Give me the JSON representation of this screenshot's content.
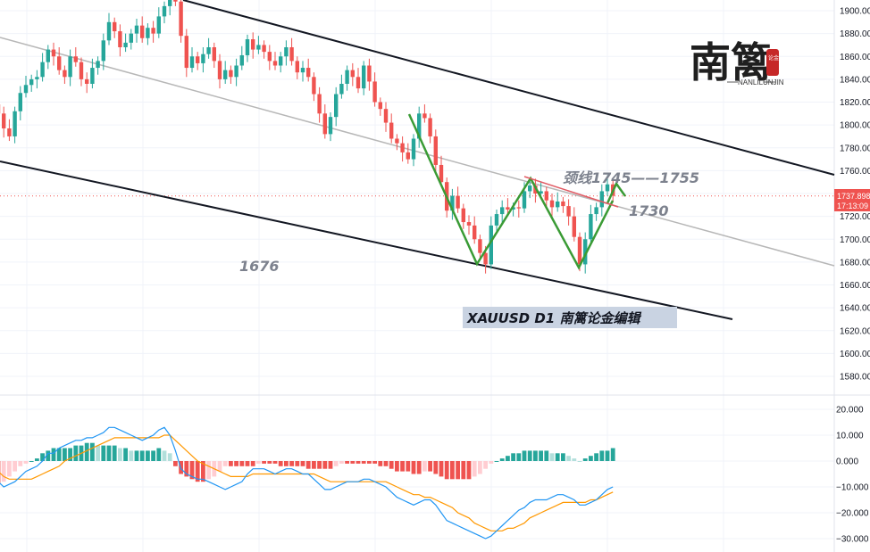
{
  "colors": {
    "up": "#26a69a",
    "down": "#ef5350",
    "hist_up_strong": "#26a69a",
    "hist_up_weak": "#b2dfdb",
    "hist_down_strong": "#ef5350",
    "hist_down_weak": "#ffcdd2",
    "macd_line": "#2196f3",
    "signal_line": "#ff9800",
    "pattern": "#3a9b35",
    "channel": "#131722",
    "mid_channel": "#b7b7b7",
    "neckline": "#e15b64",
    "price_tag": "#ef5350"
  },
  "logo": {
    "text": "南篱",
    "sub": "NANLILUNJIN",
    "seal_text": "论金"
  },
  "annotations": {
    "neckline": "颈线1745——1755",
    "level_1730": "1730",
    "level_1676": "1676",
    "tag": "XAUUSD  D1   南篱论金编辑"
  },
  "price_tag": {
    "price": "1737.898",
    "countdown": "17:13:09"
  },
  "chart_data": [
    {
      "type": "candlestick",
      "symbol": "XAUUSD",
      "timeframe": "D1",
      "ylim": [
        1565,
        1910
      ],
      "yticks": [
        "1580.000",
        "1600.000",
        "1620.000",
        "1640.000",
        "1660.000",
        "1680.000",
        "1700.000",
        "1720.000",
        "1740.000",
        "1760.000",
        "1780.000",
        "1800.000",
        "1820.000",
        "1840.000",
        "1860.000",
        "1880.000",
        "1900.000"
      ],
      "grid": true,
      "close": [
        1810,
        1797,
        1790,
        1812,
        1828,
        1835,
        1840,
        1842,
        1855,
        1866,
        1860,
        1848,
        1842,
        1860,
        1855,
        1840,
        1836,
        1850,
        1856,
        1874,
        1890,
        1882,
        1868,
        1872,
        1880,
        1887,
        1876,
        1885,
        1880,
        1895,
        1904,
        1910,
        1908,
        1878,
        1850,
        1860,
        1854,
        1862,
        1868,
        1856,
        1840,
        1848,
        1842,
        1852,
        1861,
        1875,
        1866,
        1870,
        1864,
        1856,
        1852,
        1860,
        1868,
        1856,
        1846,
        1850,
        1842,
        1827,
        1810,
        1792,
        1807,
        1827,
        1836,
        1848,
        1842,
        1832,
        1852,
        1838,
        1820,
        1814,
        1802,
        1788,
        1784,
        1776,
        1770,
        1788,
        1810,
        1806,
        1790,
        1765,
        1750,
        1725,
        1738,
        1727,
        1715,
        1712,
        1700,
        1688,
        1678,
        1712,
        1722,
        1728,
        1726,
        1728,
        1727,
        1742,
        1747,
        1740,
        1742,
        1734,
        1728,
        1733,
        1729,
        1720,
        1702,
        1678,
        1700,
        1722,
        1728,
        1742,
        1748,
        1738
      ],
      "macd": [
        -8,
        -10,
        -9,
        -8,
        -6,
        -4,
        -3,
        -2,
        0,
        3,
        3,
        5,
        6,
        7,
        8,
        8,
        9,
        9,
        10,
        11,
        13,
        13,
        12,
        11,
        10,
        9,
        8,
        9,
        10,
        12,
        13,
        10,
        4,
        -3,
        -5,
        -6,
        -7,
        -7,
        -8,
        -9,
        -10,
        -11,
        -10,
        -9,
        -8,
        -5,
        -3,
        -3,
        -3,
        -4,
        -5,
        -4,
        -3,
        -3,
        -4,
        -5,
        -5,
        -7,
        -9,
        -11,
        -11,
        -10,
        -9,
        -8,
        -8,
        -8,
        -7,
        -7,
        -8,
        -9,
        -10,
        -12,
        -14,
        -15,
        -16,
        -17,
        -16,
        -15,
        -15,
        -17,
        -20,
        -23,
        -24,
        -25,
        -26,
        -27,
        -28,
        -29,
        -30,
        -29,
        -27,
        -25,
        -23,
        -21,
        -19,
        -18,
        -16,
        -15,
        -15,
        -15,
        -14,
        -13,
        -13,
        -14,
        -15,
        -17,
        -17,
        -16,
        -15,
        -13,
        -11,
        -10
      ],
      "macd_x_start": 0,
      "signal": [
        -4,
        -6,
        -7,
        -7,
        -7,
        -7,
        -7,
        -6,
        -5,
        -4,
        -3,
        -2,
        0,
        1,
        2,
        3,
        4,
        5,
        6,
        7,
        8,
        9,
        9,
        9,
        9,
        9,
        9,
        9,
        9,
        9,
        10,
        10,
        8,
        6,
        4,
        2,
        0,
        -1,
        -2,
        -3,
        -4,
        -5,
        -6,
        -6,
        -6,
        -6,
        -5,
        -5,
        -5,
        -5,
        -5,
        -5,
        -5,
        -5,
        -5,
        -5,
        -5,
        -5,
        -6,
        -7,
        -8,
        -8,
        -8,
        -8,
        -8,
        -8,
        -8,
        -8,
        -8,
        -8,
        -8,
        -9,
        -10,
        -11,
        -12,
        -13,
        -13,
        -14,
        -14,
        -15,
        -16,
        -17,
        -18,
        -20,
        -21,
        -22,
        -24,
        -25,
        -26,
        -27,
        -27,
        -27,
        -26,
        -26,
        -25,
        -24,
        -22,
        -21,
        -20,
        -19,
        -18,
        -17,
        -16,
        -16,
        -16,
        -16,
        -16,
        -15,
        -15,
        -14,
        -13,
        -12
      ],
      "histogram": [
        -9,
        -8,
        -6,
        -4,
        -2,
        -1,
        0,
        1,
        3,
        4,
        5,
        5,
        5,
        5,
        6,
        6,
        7,
        7,
        6,
        6,
        6,
        6,
        5,
        5,
        4,
        4,
        4,
        4,
        4,
        5,
        4,
        3,
        -2,
        -5,
        -6,
        -7,
        -8,
        -8,
        -7,
        -6,
        -4,
        -2,
        -2,
        -2,
        -2,
        -2,
        -2,
        -1,
        -1,
        -1,
        -1,
        -2,
        -2,
        -2,
        -2,
        -2,
        -3,
        -3,
        -3,
        -3,
        -3,
        -2,
        -1,
        -1,
        -1,
        -1,
        -1,
        -1,
        -1,
        -2,
        -2,
        -3,
        -4,
        -4,
        -4,
        -5,
        -5,
        -4,
        -4,
        -5,
        -6,
        -7,
        -7,
        -7,
        -7,
        -7,
        -6,
        -5,
        -3,
        -1,
        0,
        1,
        2,
        3,
        3,
        4,
        4,
        4,
        4,
        4,
        3,
        3,
        3,
        2,
        1,
        0,
        1,
        2,
        3,
        4,
        4,
        5
      ],
      "histogram_x_start": 0,
      "macd_ylim": [
        -33,
        23
      ],
      "macd_yticks": [
        "20.000",
        "10.000",
        "0.000",
        "−10.000",
        "−20.000",
        "−30.000"
      ]
    }
  ]
}
